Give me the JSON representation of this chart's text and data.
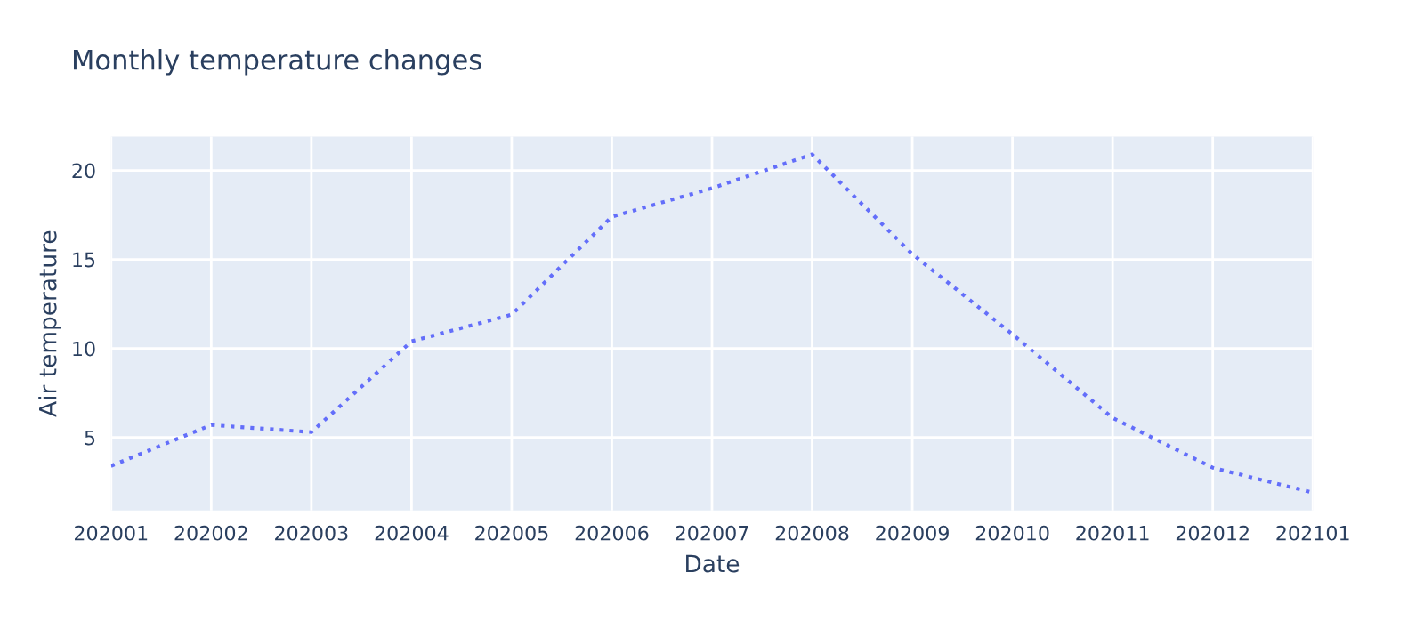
{
  "chart_data": {
    "type": "line",
    "title": "Monthly temperature changes",
    "xlabel": "Date",
    "ylabel": "Air temperature",
    "categories": [
      "202001",
      "202002",
      "202003",
      "202004",
      "202005",
      "202006",
      "202007",
      "202008",
      "202009",
      "202010",
      "202011",
      "202012",
      "202101"
    ],
    "series": [
      {
        "color": "#636efa",
        "values": [
          3.4,
          5.7,
          5.3,
          10.4,
          11.9,
          17.4,
          19.0,
          20.9,
          15.3,
          10.8,
          6.1,
          3.3,
          1.9
        ]
      }
    ],
    "ylim": [
      0.9,
      21.9
    ],
    "yticks": [
      5,
      10,
      15,
      20
    ],
    "grid": true,
    "line_style": "dotted"
  }
}
